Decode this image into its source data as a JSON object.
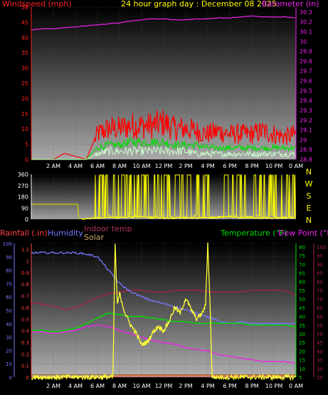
{
  "chart_data": [
    {
      "type": "line",
      "title": "24 hour graph day : December 08 2025",
      "left_axis_label": "Windspeed (mph)",
      "right_axis_label": "Barometer (in)",
      "x_ticks": [
        "2 AM",
        "4 AM",
        "6 AM",
        "8 AM",
        "10 AM",
        "12 PM",
        "2 PM",
        "4 PM",
        "6 PM",
        "8 PM",
        "10 PM",
        "0 AM"
      ],
      "y_left_ticks": [
        "0",
        "5",
        "10",
        "15",
        "20",
        "25",
        "30",
        "35",
        "40",
        "45",
        "50"
      ],
      "y_right_ticks": [
        "28.8",
        "28.9",
        "29",
        "29.1",
        "29.2",
        "29.3",
        "29.4",
        "29.5",
        "29.6",
        "29.7",
        "29.8",
        "29.9",
        "30",
        "30.1",
        "30.2",
        "30.3"
      ],
      "ylim_left": [
        0,
        50
      ],
      "ylim_right": [
        28.8,
        30.35
      ],
      "xlim_hours": [
        0,
        24
      ],
      "colors": {
        "gust": "#ff0000",
        "wind": "#00dd00",
        "average": "#ccffcc",
        "barometer": "#ee22ee"
      },
      "series": [
        {
          "axis": "right",
          "x": [
            0,
            1,
            2,
            3,
            4,
            5,
            6,
            7,
            8,
            9,
            10,
            11,
            12,
            13,
            14,
            15,
            16,
            17,
            18,
            19,
            20,
            21,
            22,
            23,
            24
          ],
          "values": [
            30.12,
            30.13,
            30.13,
            30.14,
            30.15,
            30.16,
            30.17,
            30.18,
            30.19,
            30.21,
            30.22,
            30.23,
            30.23,
            30.22,
            30.22,
            30.23,
            30.23,
            30.24,
            30.24,
            30.25,
            30.26,
            30.25,
            30.25,
            30.25,
            30.24
          ]
        },
        {
          "axis": "left",
          "x": [
            0,
            2,
            3,
            4,
            5,
            6,
            7,
            8,
            9,
            10,
            11,
            12,
            13,
            14,
            15,
            16,
            17,
            18,
            19,
            20,
            21,
            22,
            23,
            24
          ],
          "values": [
            0,
            0,
            2,
            1,
            0,
            9,
            11,
            11,
            12,
            12,
            12,
            13,
            11,
            11,
            10,
            9,
            10,
            9,
            9,
            9,
            10,
            9,
            8,
            9
          ]
        },
        {
          "axis": "left",
          "x": [
            0,
            4,
            5,
            6,
            7,
            8,
            9,
            10,
            11,
            12,
            13,
            14,
            15,
            16,
            17,
            18,
            19,
            20,
            21,
            22,
            23,
            24
          ],
          "values": [
            0,
            0,
            0,
            4,
            5,
            5,
            6,
            6,
            6,
            6,
            5,
            5,
            5,
            4,
            4,
            4,
            4,
            4,
            4,
            4,
            4,
            4
          ]
        },
        {
          "axis": "left",
          "x": [
            0,
            5,
            6,
            7,
            8,
            9,
            10,
            11,
            12,
            13,
            14,
            15,
            16,
            17,
            18,
            19,
            20,
            21,
            22,
            23,
            24
          ],
          "values": [
            0,
            0,
            2,
            3,
            3,
            3,
            3,
            3,
            3,
            3,
            3,
            2,
            2,
            2,
            2,
            2,
            2,
            2,
            2,
            2,
            2
          ]
        }
      ]
    },
    {
      "type": "line",
      "y_ticks": [
        "0",
        "90",
        "180",
        "270",
        "360"
      ],
      "direction_labels": [
        "N",
        "W",
        "S",
        "E",
        "N"
      ],
      "ylim": [
        0,
        360
      ],
      "xlim_hours": [
        0,
        24
      ],
      "colors": {
        "direction": "#ffff00",
        "average": "#cccc00"
      },
      "series": [
        {
          "x": [
            0,
            0.3,
            4.2,
            4.3
          ],
          "values": [
            120,
            120,
            120,
            0
          ]
        },
        {
          "x": [
            4.5,
            6,
            7,
            8,
            9,
            10,
            11,
            12,
            13,
            14,
            15,
            16,
            17,
            18,
            19,
            20,
            21,
            22,
            23,
            24
          ],
          "values": [
            0,
            10,
            15,
            12,
            18,
            20,
            15,
            10,
            12,
            14,
            10,
            12,
            16,
            20,
            14,
            12,
            10,
            12,
            15,
            10
          ]
        }
      ]
    },
    {
      "type": "line",
      "labels": {
        "rainfall": "Rainfall (.in)",
        "humidity": "Humidity",
        "indoor": "Indoor temp",
        "solar": "Solar",
        "temperature": "Temperature (°F)",
        "dewpoint": "Dew Point (°F)"
      },
      "x_ticks": [
        "2 AM",
        "4 AM",
        "6 AM",
        "8 AM",
        "10 AM",
        "12 PM",
        "2 PM",
        "4 PM",
        "6 PM",
        "8 PM",
        "10 PM",
        "0 AM"
      ],
      "humidity_ticks": [
        "0",
        "10",
        "20",
        "30",
        "40",
        "50",
        "60",
        "70",
        "80",
        "90",
        "100"
      ],
      "rain_ticks": [
        "0",
        "0.1",
        "0.2",
        "0.3",
        "0.4",
        "0.5",
        "0.6",
        "0.7",
        "0.8",
        "0.9",
        "1",
        "1.1"
      ],
      "temp_ticks": [
        "5",
        "10",
        "15",
        "20",
        "25",
        "30",
        "35",
        "40",
        "45",
        "50",
        "55",
        "60",
        "65",
        "70",
        "75",
        "80"
      ],
      "indoor_ticks": [
        "25",
        "30",
        "35",
        "40",
        "45",
        "50",
        "55",
        "60",
        "65",
        "70",
        "75",
        "80",
        "85",
        "90",
        "95",
        "100"
      ],
      "ylim_humidity": [
        0,
        100
      ],
      "ylim_rain": [
        0,
        1.15
      ],
      "ylim_temp": [
        5,
        82
      ],
      "ylim_indoor": [
        25,
        102
      ],
      "xlim_hours": [
        0,
        24
      ],
      "colors": {
        "rainfall": "#ff4444",
        "humidity": "#7777ff",
        "indoor": "#aa2244",
        "solar": "#ffff33",
        "temperature": "#00dd00",
        "dewpoint": "#ee22ee",
        "brown": "#996600"
      },
      "series": [
        {
          "name": "Humidity",
          "x": [
            0,
            1,
            2,
            3,
            4,
            5,
            6,
            7,
            8,
            9,
            10,
            11,
            12,
            13,
            14,
            15,
            16,
            17,
            18,
            19,
            20,
            21,
            22,
            23,
            24
          ],
          "values": [
            93,
            93,
            93,
            93,
            93,
            92,
            90,
            80,
            70,
            64,
            60,
            57,
            55,
            53,
            50,
            48,
            45,
            42,
            40,
            41,
            40,
            40,
            40,
            40,
            40
          ]
        },
        {
          "name": "Indoor temp",
          "x": [
            0,
            1,
            2,
            3,
            4,
            5,
            6,
            7,
            8,
            9,
            10,
            11,
            12,
            13,
            14,
            15,
            16,
            17,
            18,
            19,
            20,
            21,
            22,
            23,
            24
          ],
          "values": [
            68,
            67,
            66,
            64,
            65,
            68,
            71,
            73,
            74,
            75,
            75,
            74,
            74,
            75,
            75,
            75,
            74,
            74,
            74,
            74,
            75,
            75,
            75,
            75,
            72
          ]
        },
        {
          "name": "Temperature",
          "x": [
            0,
            1,
            2,
            3,
            4,
            5,
            6,
            7,
            8,
            9,
            10,
            11,
            12,
            13,
            14,
            15,
            16,
            17,
            18,
            19,
            20,
            21,
            22,
            23,
            24
          ],
          "values": [
            32,
            32,
            31,
            32,
            33,
            36,
            39,
            42,
            41,
            40,
            40,
            39,
            38,
            37,
            37,
            36,
            36,
            36,
            36,
            36,
            35,
            35,
            35,
            35,
            34
          ]
        },
        {
          "name": "Dew Point",
          "x": [
            0,
            1,
            2,
            3,
            4,
            5,
            6,
            7,
            8,
            9,
            10,
            11,
            12,
            13,
            14,
            15,
            16,
            17,
            18,
            19,
            20,
            21,
            22,
            23,
            24
          ],
          "values": [
            31,
            31,
            30,
            31,
            32,
            34,
            35,
            34,
            32,
            30,
            28,
            26,
            25,
            24,
            22,
            21,
            20,
            18,
            17,
            16,
            15,
            14,
            14,
            14,
            13
          ]
        },
        {
          "name": "Solar",
          "x": [
            0,
            7,
            7.4,
            7.6,
            7.8,
            8,
            8.5,
            9,
            9.5,
            10,
            10.5,
            11,
            11.5,
            12,
            12.5,
            13,
            13.5,
            14,
            14.5,
            15,
            15.5,
            15.8,
            16,
            16.2,
            16.4,
            16.6,
            24
          ],
          "values": [
            0,
            0,
            0,
            1.15,
            0.62,
            0.72,
            0.55,
            0.45,
            0.38,
            0.28,
            0.3,
            0.38,
            0.44,
            0.4,
            0.48,
            0.6,
            0.55,
            0.68,
            0.58,
            0.5,
            0.55,
            0.62,
            1.15,
            0.65,
            0,
            0,
            0
          ]
        },
        {
          "name": "Brown",
          "x": [
            0,
            24
          ],
          "values": [
            0.02,
            0.02
          ]
        },
        {
          "name": "Rainfall",
          "x": [
            0,
            7,
            8,
            9,
            10,
            11,
            12,
            13,
            14,
            15,
            16,
            17,
            18,
            19,
            20,
            21,
            22,
            23,
            24
          ],
          "values": [
            0,
            0,
            0.01,
            0.01,
            0.01,
            0.01,
            0.01,
            0.01,
            0.01,
            0.01,
            0.01,
            0.01,
            0.01,
            0.01,
            0.01,
            0.01,
            0.01,
            0.01,
            0.01
          ]
        }
      ]
    }
  ]
}
